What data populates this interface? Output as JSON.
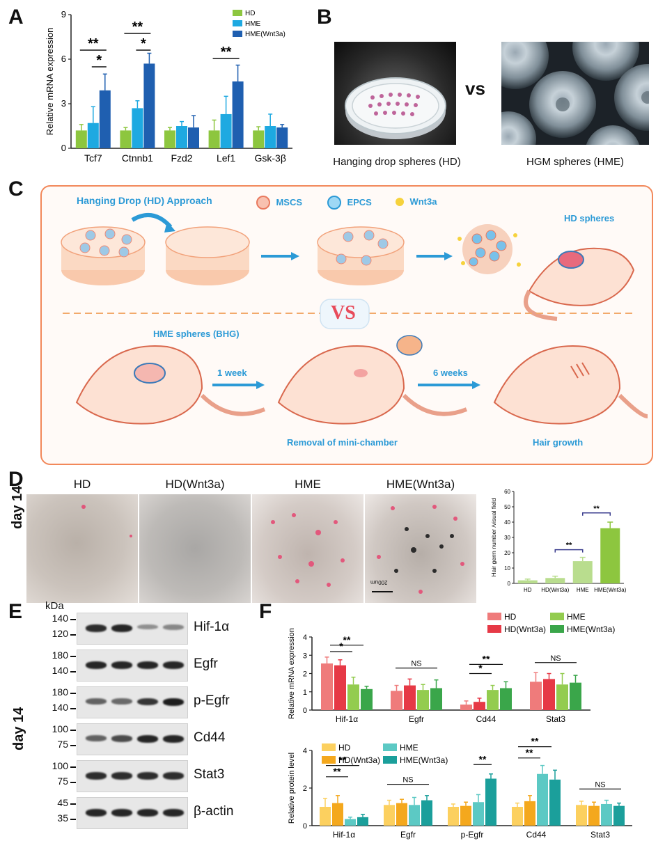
{
  "panels": {
    "a": "A",
    "b": "B",
    "c": "C",
    "d": "D",
    "e": "E",
    "f": "F"
  },
  "colors": {
    "hd_green": "#8dc63f",
    "hme_cyan": "#1ea9e1",
    "hme_wnt_blue": "#1f5fb0",
    "orange": "#f2885a",
    "schematic_blue": "#2c9ad6",
    "vs_red": "#e84b5b",
    "d_light": "#b9dd8e",
    "d_green": "#8dc63f",
    "bracket": "#3d3f8f",
    "f_pink": "#ef7b7b",
    "f_red": "#e63946",
    "f_lgreen": "#93cc4f",
    "f_green": "#3aa64a",
    "f_yellow": "#fcd05f",
    "f_orange": "#f4a81d",
    "f_teal": "#5cc9c4",
    "f_dteal": "#1b9f9b"
  },
  "panel_a": {
    "chart_data": {
      "type": "bar",
      "ylabel": "Relative mRNA expression",
      "ylim": [
        0,
        9
      ],
      "yticks": [
        "0",
        "3",
        "6",
        "9"
      ],
      "categories": [
        "Tcf7",
        "Ctnnb1",
        "Fzd2",
        "Lef1",
        "Gsk-3β"
      ],
      "series": [
        {
          "name": "HD",
          "values": [
            1.2,
            1.2,
            1.2,
            1.2,
            1.2
          ],
          "errors": [
            0.4,
            0.2,
            0.2,
            0.7,
            0.25
          ]
        },
        {
          "name": "HME",
          "values": [
            1.7,
            2.7,
            1.5,
            2.3,
            1.5
          ],
          "errors": [
            1.1,
            0.5,
            0.3,
            1.2,
            0.8
          ]
        },
        {
          "name": "HME(Wnt3a)",
          "values": [
            3.9,
            5.7,
            1.4,
            4.5,
            1.4
          ],
          "errors": [
            1.1,
            0.7,
            0.8,
            1.1,
            0.2
          ]
        }
      ],
      "significance": [
        {
          "category": "Tcf7",
          "label": "**",
          "span": "HD-HME(Wnt3a)"
        },
        {
          "category": "Tcf7",
          "label": "*",
          "span": "HME-HME(Wnt3a)"
        },
        {
          "category": "Ctnnb1",
          "label": "**",
          "span": "HD-HME(Wnt3a)"
        },
        {
          "category": "Ctnnb1",
          "label": "*",
          "span": "HME-HME(Wnt3a)"
        },
        {
          "category": "Lef1",
          "label": "**",
          "span": "HD-HME(Wnt3a)"
        }
      ]
    }
  },
  "panel_b": {
    "left_caption": "Hanging drop spheres (HD)",
    "vs": "vs",
    "right_caption": "HGM spheres (HME)"
  },
  "panel_c": {
    "top_title": "Hanging Drop (HD) Approach",
    "legend": [
      "MSCS",
      "EPCS",
      "Wnt3a"
    ],
    "hd_spheres": "HD spheres",
    "vs": "VS",
    "hme_spheres": "HME spheres (BHG)",
    "step1": "1 week",
    "step2": "6 weeks",
    "removal": "Removal of mini-chamber",
    "hair": "Hair growth"
  },
  "panel_d": {
    "row_label": "day 14",
    "images": [
      "HD",
      "HD(Wnt3a)",
      "HME",
      "HME(Wnt3a)"
    ],
    "scale_bar": "200um",
    "chart_data": {
      "type": "bar",
      "ylabel": "Hair germ number /visual field",
      "ylim": [
        0,
        60
      ],
      "yticks": [
        "0",
        "10",
        "20",
        "30",
        "40",
        "50",
        "60"
      ],
      "categories": [
        "HD",
        "HD(Wnt3a)",
        "HME",
        "HME(Wnt3a)"
      ],
      "values": [
        2,
        3.5,
        14.5,
        36
      ],
      "errors": [
        0.8,
        1.2,
        2.5,
        4
      ],
      "significance": [
        {
          "label": "**",
          "from": "HD(Wnt3a)",
          "to": "HME"
        },
        {
          "label": "**",
          "from": "HME",
          "to": "HME(Wnt3a)"
        }
      ]
    }
  },
  "panel_e": {
    "row_label": "day 14",
    "kda_label": "kDa",
    "blots": [
      {
        "name": "Hif-1α",
        "markers": [
          "140",
          "120"
        ],
        "intensity": [
          0.9,
          0.95,
          0.25,
          0.3
        ]
      },
      {
        "name": "Egfr",
        "markers": [
          "180",
          "140"
        ],
        "intensity": [
          0.95,
          0.95,
          0.95,
          0.95
        ]
      },
      {
        "name": "p-Egfr",
        "markers": [
          "180",
          "140"
        ],
        "intensity": [
          0.55,
          0.5,
          0.85,
          1.0
        ]
      },
      {
        "name": "Cd44",
        "markers": [
          "100",
          "75"
        ],
        "intensity": [
          0.55,
          0.7,
          0.95,
          0.95
        ]
      },
      {
        "name": "Stat3",
        "markers": [
          "100",
          "75"
        ],
        "intensity": [
          0.9,
          0.9,
          0.9,
          0.9
        ]
      },
      {
        "name": "β-actin",
        "markers": [
          "45",
          "35"
        ],
        "intensity": [
          0.95,
          0.95,
          0.95,
          0.95
        ]
      }
    ]
  },
  "panel_f": {
    "chart_data": [
      {
        "type": "bar",
        "ylabel": "Relative mRNA expression",
        "ylim": [
          0,
          4
        ],
        "yticks": [
          "0",
          "1",
          "2",
          "3",
          "4"
        ],
        "categories": [
          "Hif-1α",
          "Egfr",
          "Cd44",
          "Stat3"
        ],
        "series": [
          {
            "name": "HD",
            "values": [
              2.55,
              1.05,
              0.3,
              1.55
            ],
            "errors": [
              0.35,
              0.3,
              0.2,
              0.5
            ]
          },
          {
            "name": "HD(Wnt3a)",
            "values": [
              2.45,
              1.35,
              0.45,
              1.7
            ],
            "errors": [
              0.3,
              0.35,
              0.2,
              0.3
            ]
          },
          {
            "name": "HME",
            "values": [
              1.4,
              1.1,
              1.1,
              1.4
            ],
            "errors": [
              0.4,
              0.3,
              0.25,
              0.6
            ]
          },
          {
            "name": "HME(Wnt3a)",
            "values": [
              1.15,
              1.2,
              1.2,
              1.5
            ],
            "errors": [
              0.15,
              0.45,
              0.35,
              0.4
            ]
          }
        ],
        "significance": [
          {
            "category": "Hif-1α",
            "label": "**"
          },
          {
            "category": "Hif-1α",
            "label": "*"
          },
          {
            "category": "Egfr",
            "label": "NS"
          },
          {
            "category": "Cd44",
            "label": "**"
          },
          {
            "category": "Cd44",
            "label": "*"
          },
          {
            "category": "Stat3",
            "label": "NS"
          }
        ]
      },
      {
        "type": "bar",
        "ylabel": "Relative protein level",
        "ylim": [
          0,
          4
        ],
        "yticks": [
          "0",
          "2",
          "4"
        ],
        "categories": [
          "Hif-1α",
          "Egfr",
          "p-Egfr",
          "Cd44",
          "Stat3"
        ],
        "series": [
          {
            "name": "HD",
            "values": [
              1.0,
              1.1,
              1.0,
              1.0,
              1.1
            ],
            "errors": [
              0.45,
              0.25,
              0.15,
              0.2,
              0.2
            ]
          },
          {
            "name": "HD(Wnt3a)",
            "values": [
              1.2,
              1.2,
              1.05,
              1.3,
              1.05
            ],
            "errors": [
              0.4,
              0.2,
              0.2,
              0.3,
              0.2
            ]
          },
          {
            "name": "HME",
            "values": [
              0.35,
              1.1,
              1.25,
              2.75,
              1.15
            ],
            "errors": [
              0.1,
              0.4,
              0.4,
              0.45,
              0.2
            ]
          },
          {
            "name": "HME(Wnt3a)",
            "values": [
              0.45,
              1.35,
              2.5,
              2.45,
              1.05
            ],
            "errors": [
              0.15,
              0.25,
              0.25,
              0.5,
              0.15
            ]
          }
        ],
        "significance": [
          {
            "category": "Hif-1α",
            "label": "**"
          },
          {
            "category": "Hif-1α",
            "label": "**"
          },
          {
            "category": "Egfr",
            "label": "NS"
          },
          {
            "category": "p-Egfr",
            "label": "**"
          },
          {
            "category": "Cd44",
            "label": "**"
          },
          {
            "category": "Cd44",
            "label": "**"
          },
          {
            "category": "Stat3",
            "label": "NS"
          }
        ]
      }
    ]
  }
}
